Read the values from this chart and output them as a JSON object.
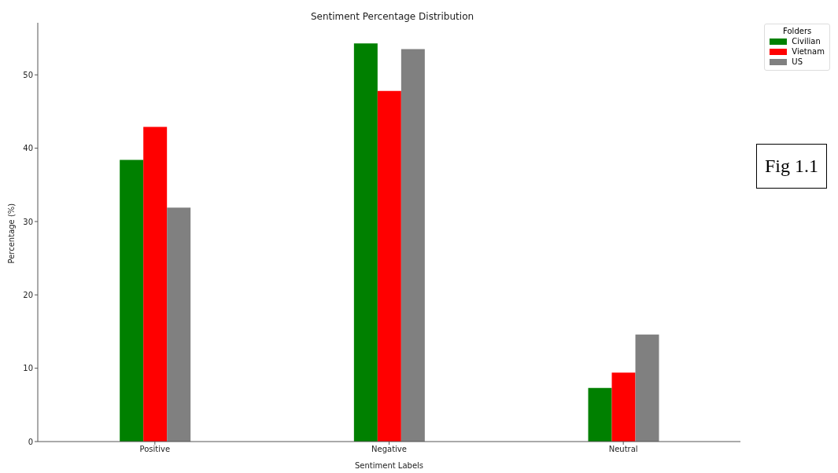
{
  "chart_data": {
    "type": "bar",
    "title": "Sentiment Percentage Distribution",
    "xlabel": "Sentiment Labels",
    "ylabel": "Percentage (%)",
    "legend_title": "Folders",
    "categories": [
      "Positive",
      "Negative",
      "Neutral"
    ],
    "series": [
      {
        "name": "Civilian",
        "color": "#008000",
        "values": [
          38.4,
          54.3,
          7.3
        ]
      },
      {
        "name": "Vietnam",
        "color": "#ff0000",
        "values": [
          42.9,
          47.8,
          9.4
        ]
      },
      {
        "name": "US",
        "color": "#808080",
        "values": [
          31.9,
          53.5,
          14.6
        ]
      }
    ],
    "ylim": [
      0,
      57.1
    ],
    "yticks": [
      0,
      10,
      20,
      30,
      40,
      50
    ],
    "grid": false,
    "legend": "top right",
    "annotations": [
      "Fig 1.1"
    ]
  }
}
